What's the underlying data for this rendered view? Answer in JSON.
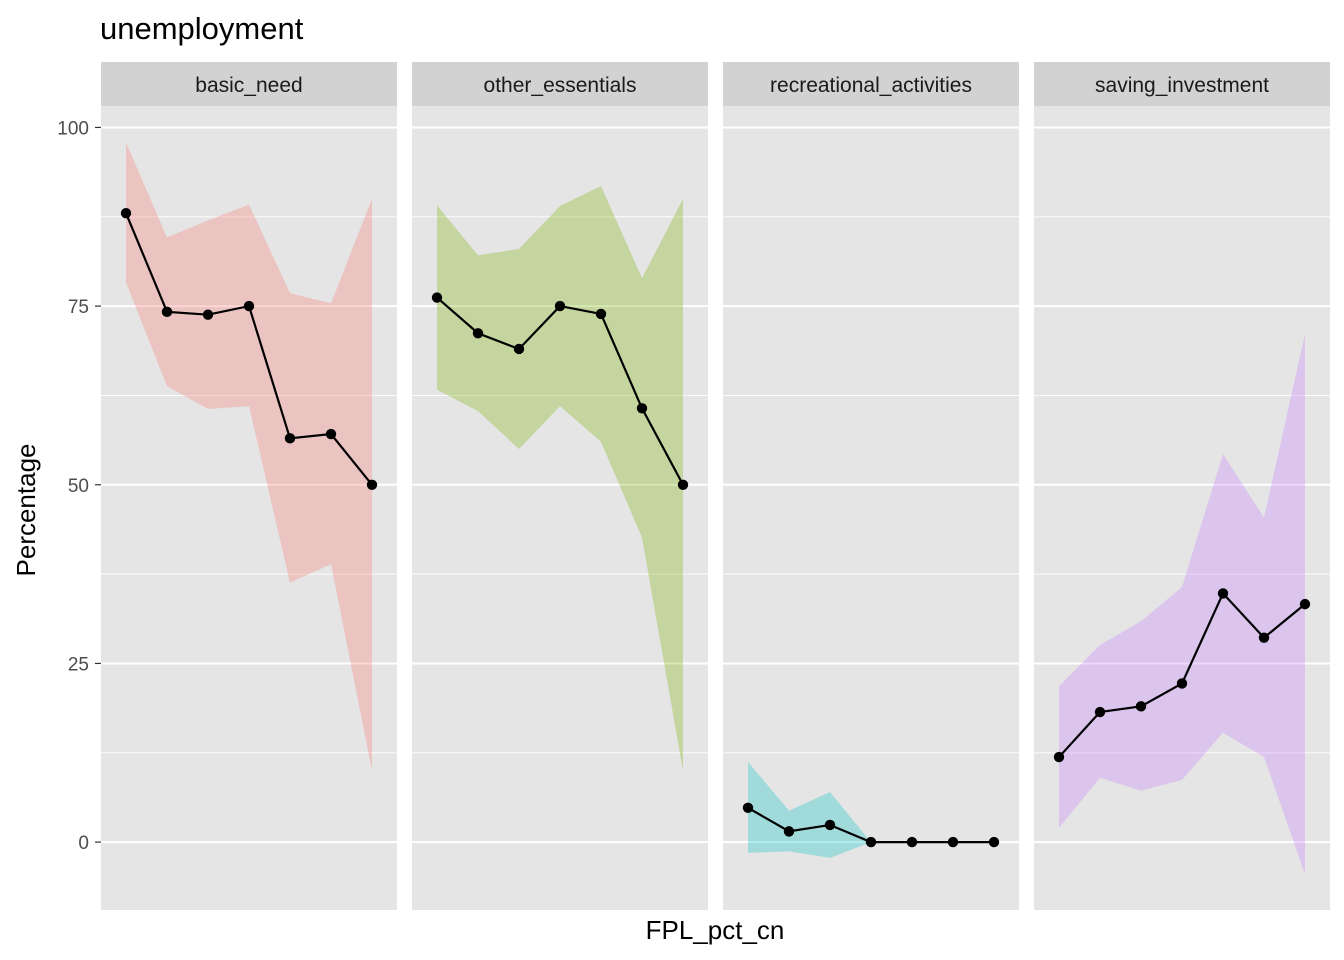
{
  "chart_data": {
    "type": "line",
    "title": "unemployment",
    "xlabel": "FPL_pct_cn",
    "ylabel": "Percentage",
    "ylim": [
      -9.5,
      103
    ],
    "y_ticks": [
      0,
      25,
      50,
      75,
      100
    ],
    "x": [
      1,
      2,
      3,
      4,
      5,
      6,
      7
    ],
    "grid": true,
    "legend": "none",
    "ribbon_alpha": 0.3,
    "line_color": "#000000",
    "point_color": "#000000",
    "panel_background": "#e5e5e5",
    "strip_background": "#d2d2d2",
    "grid_color": "#ffffff",
    "facets": [
      {
        "name": "basic_need",
        "color": "#f8766d",
        "values": [
          88,
          74.2,
          73.8,
          75,
          56.5,
          57.1,
          50
        ],
        "lower": [
          78.3,
          63.8,
          60.6,
          61,
          36.3,
          38.9,
          10
        ],
        "upper": [
          97.9,
          84.6,
          87,
          89.2,
          76.8,
          75.4,
          90
        ]
      },
      {
        "name": "other_essentials",
        "color": "#7cae00",
        "values": [
          76.2,
          71.2,
          69,
          75,
          73.9,
          60.7,
          50
        ],
        "lower": [
          63.3,
          60.3,
          55,
          61,
          56,
          42.6,
          10
        ],
        "upper": [
          89.1,
          82.1,
          83,
          89,
          91.8,
          78.9,
          90
        ]
      },
      {
        "name": "recreational_activities",
        "color": "#00bfc4",
        "values": [
          4.8,
          1.5,
          2.4,
          0,
          0,
          0,
          0
        ],
        "lower": [
          -1.5,
          -1.3,
          -2.2,
          0,
          0,
          0,
          0
        ],
        "upper": [
          11.2,
          4.4,
          7,
          0,
          0,
          0,
          0
        ]
      },
      {
        "name": "saving_investment",
        "color": "#c77cff",
        "values": [
          11.9,
          18.2,
          19,
          22.2,
          34.8,
          28.6,
          33.3
        ],
        "lower": [
          2,
          9,
          7.2,
          8.7,
          15.3,
          11.9,
          -4.5
        ],
        "upper": [
          21.8,
          27.6,
          30.9,
          35.7,
          54.3,
          45.4,
          71.1
        ]
      }
    ]
  }
}
